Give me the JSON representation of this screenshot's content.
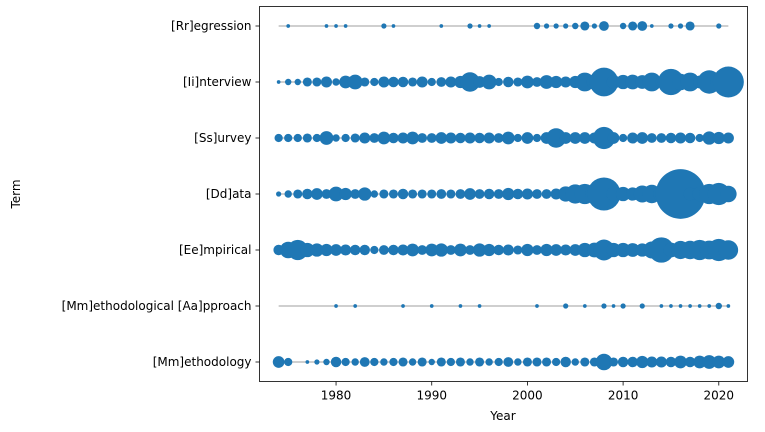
{
  "chart_data": {
    "type": "scatter",
    "xlabel": "Year",
    "ylabel": "Term",
    "xlim": [
      1972,
      2023
    ],
    "xticks": [
      1980,
      1990,
      2000,
      2010,
      2020
    ],
    "grid": false,
    "legend": "none",
    "marker_color": "#1f77b4",
    "line_color": "#7f7f7f",
    "terms": [
      "[Rr]egression",
      "[Ii]nterview",
      "[Ss]urvey",
      "[Dd]ata",
      "[Ee]mpirical",
      "[Mm]ethodological [Aa]pproach",
      "[Mm]ethodology"
    ],
    "series": [
      {
        "term": "[Rr]egression",
        "range": [
          1974,
          2021
        ],
        "points": [
          [
            1975,
            1
          ],
          [
            1979,
            1
          ],
          [
            1980,
            1
          ],
          [
            1981,
            1
          ],
          [
            1985,
            2
          ],
          [
            1986,
            1
          ],
          [
            1991,
            1
          ],
          [
            1994,
            2
          ],
          [
            1995,
            1
          ],
          [
            1996,
            1
          ],
          [
            2001,
            3
          ],
          [
            2002,
            2
          ],
          [
            2003,
            2
          ],
          [
            2004,
            2
          ],
          [
            2005,
            3
          ],
          [
            2006,
            6
          ],
          [
            2007,
            2
          ],
          [
            2008,
            7
          ],
          [
            2010,
            3
          ],
          [
            2011,
            6
          ],
          [
            2012,
            7
          ],
          [
            2013,
            1
          ],
          [
            2015,
            2
          ],
          [
            2016,
            2
          ],
          [
            2017,
            6
          ],
          [
            2020,
            2
          ]
        ]
      },
      {
        "term": "[Ii]nterview",
        "range": [
          1974,
          2021
        ],
        "points": [
          [
            1974,
            1
          ],
          [
            1975,
            3
          ],
          [
            1976,
            3
          ],
          [
            1977,
            6
          ],
          [
            1978,
            6
          ],
          [
            1979,
            9
          ],
          [
            1980,
            4
          ],
          [
            1981,
            12
          ],
          [
            1982,
            16
          ],
          [
            1983,
            6
          ],
          [
            1984,
            5
          ],
          [
            1985,
            9
          ],
          [
            1986,
            8
          ],
          [
            1987,
            8
          ],
          [
            1988,
            6
          ],
          [
            1989,
            9
          ],
          [
            1990,
            5
          ],
          [
            1991,
            7
          ],
          [
            1992,
            9
          ],
          [
            1993,
            11
          ],
          [
            1994,
            28
          ],
          [
            1995,
            10
          ],
          [
            1996,
            16
          ],
          [
            1997,
            5
          ],
          [
            1998,
            8
          ],
          [
            1999,
            6
          ],
          [
            2000,
            12
          ],
          [
            2001,
            7
          ],
          [
            2002,
            14
          ],
          [
            2003,
            11
          ],
          [
            2004,
            9
          ],
          [
            2005,
            11
          ],
          [
            2006,
            26
          ],
          [
            2007,
            17
          ],
          [
            2008,
            60
          ],
          [
            2009,
            14
          ],
          [
            2010,
            15
          ],
          [
            2011,
            16
          ],
          [
            2012,
            14
          ],
          [
            2013,
            26
          ],
          [
            2014,
            10
          ],
          [
            2015,
            50
          ],
          [
            2016,
            20
          ],
          [
            2017,
            26
          ],
          [
            2018,
            12
          ],
          [
            2019,
            40
          ],
          [
            2020,
            20
          ],
          [
            2021,
            70
          ]
        ]
      },
      {
        "term": "[Ss]urvey",
        "range": [
          1974,
          2021
        ],
        "points": [
          [
            1974,
            5
          ],
          [
            1975,
            5
          ],
          [
            1976,
            5
          ],
          [
            1977,
            6
          ],
          [
            1978,
            5
          ],
          [
            1979,
            14
          ],
          [
            1980,
            4
          ],
          [
            1981,
            5
          ],
          [
            1982,
            6
          ],
          [
            1983,
            9
          ],
          [
            1984,
            7
          ],
          [
            1985,
            12
          ],
          [
            1986,
            8
          ],
          [
            1987,
            9
          ],
          [
            1988,
            12
          ],
          [
            1989,
            7
          ],
          [
            1990,
            7
          ],
          [
            1991,
            10
          ],
          [
            1992,
            9
          ],
          [
            1993,
            8
          ],
          [
            1994,
            9
          ],
          [
            1995,
            8
          ],
          [
            1996,
            9
          ],
          [
            1997,
            7
          ],
          [
            1998,
            12
          ],
          [
            1999,
            5
          ],
          [
            2000,
            10
          ],
          [
            2001,
            5
          ],
          [
            2002,
            10
          ],
          [
            2003,
            28
          ],
          [
            2004,
            10
          ],
          [
            2005,
            10
          ],
          [
            2006,
            10
          ],
          [
            2007,
            9
          ],
          [
            2008,
            36
          ],
          [
            2009,
            10
          ],
          [
            2010,
            5
          ],
          [
            2011,
            9
          ],
          [
            2012,
            10
          ],
          [
            2013,
            7
          ],
          [
            2014,
            7
          ],
          [
            2015,
            8
          ],
          [
            2016,
            9
          ],
          [
            2017,
            8
          ],
          [
            2018,
            5
          ],
          [
            2019,
            13
          ],
          [
            2020,
            11
          ],
          [
            2021,
            9
          ]
        ]
      },
      {
        "term": "[Dd]ata",
        "range": [
          1974,
          2021
        ],
        "points": [
          [
            1974,
            2
          ],
          [
            1975,
            4
          ],
          [
            1976,
            6
          ],
          [
            1977,
            8
          ],
          [
            1978,
            10
          ],
          [
            1979,
            7
          ],
          [
            1980,
            16
          ],
          [
            1981,
            11
          ],
          [
            1982,
            7
          ],
          [
            1983,
            13
          ],
          [
            1984,
            4
          ],
          [
            1985,
            6
          ],
          [
            1986,
            6
          ],
          [
            1987,
            8
          ],
          [
            1988,
            6
          ],
          [
            1989,
            6
          ],
          [
            1990,
            6
          ],
          [
            1991,
            7
          ],
          [
            1992,
            6
          ],
          [
            1993,
            7
          ],
          [
            1994,
            10
          ],
          [
            1995,
            7
          ],
          [
            1996,
            8
          ],
          [
            1997,
            7
          ],
          [
            1998,
            11
          ],
          [
            1999,
            8
          ],
          [
            2000,
            9
          ],
          [
            2001,
            7
          ],
          [
            2002,
            7
          ],
          [
            2003,
            9
          ],
          [
            2004,
            17
          ],
          [
            2005,
            27
          ],
          [
            2006,
            30
          ],
          [
            2007,
            24
          ],
          [
            2008,
            80
          ],
          [
            2009,
            15
          ],
          [
            2010,
            15
          ],
          [
            2011,
            13
          ],
          [
            2012,
            21
          ],
          [
            2013,
            25
          ],
          [
            2014,
            18
          ],
          [
            2015,
            22
          ],
          [
            2016,
            180
          ],
          [
            2017,
            12
          ],
          [
            2018,
            15
          ],
          [
            2019,
            30
          ],
          [
            2020,
            36
          ],
          [
            2021,
            20
          ]
        ]
      },
      {
        "term": "[Ee]mpirical",
        "range": [
          1974,
          2021
        ],
        "points": [
          [
            1974,
            8
          ],
          [
            1975,
            20
          ],
          [
            1976,
            30
          ],
          [
            1977,
            15
          ],
          [
            1978,
            13
          ],
          [
            1979,
            11
          ],
          [
            1980,
            10
          ],
          [
            1981,
            9
          ],
          [
            1982,
            8
          ],
          [
            1983,
            8
          ],
          [
            1984,
            5
          ],
          [
            1985,
            7
          ],
          [
            1986,
            8
          ],
          [
            1987,
            9
          ],
          [
            1988,
            12
          ],
          [
            1989,
            7
          ],
          [
            1990,
            12
          ],
          [
            1991,
            13
          ],
          [
            1992,
            7
          ],
          [
            1993,
            12
          ],
          [
            1994,
            7
          ],
          [
            1995,
            13
          ],
          [
            1996,
            11
          ],
          [
            1997,
            8
          ],
          [
            1998,
            9
          ],
          [
            1999,
            6
          ],
          [
            2000,
            11
          ],
          [
            2001,
            7
          ],
          [
            2002,
            11
          ],
          [
            2003,
            10
          ],
          [
            2004,
            9
          ],
          [
            2005,
            10
          ],
          [
            2006,
            15
          ],
          [
            2007,
            16
          ],
          [
            2008,
            32
          ],
          [
            2009,
            15
          ],
          [
            2010,
            15
          ],
          [
            2011,
            14
          ],
          [
            2012,
            13
          ],
          [
            2013,
            21
          ],
          [
            2014,
            47
          ],
          [
            2015,
            16
          ],
          [
            2016,
            24
          ],
          [
            2017,
            25
          ],
          [
            2018,
            30
          ],
          [
            2019,
            26
          ],
          [
            2020,
            36
          ],
          [
            2021,
            28
          ]
        ]
      },
      {
        "term": "[Mm]ethodological [Aa]pproach",
        "range": [
          1974,
          2021
        ],
        "points": [
          [
            1980,
            1
          ],
          [
            1982,
            1
          ],
          [
            1987,
            1
          ],
          [
            1990,
            1
          ],
          [
            1993,
            1
          ],
          [
            1995,
            1
          ],
          [
            2001,
            1
          ],
          [
            2004,
            2
          ],
          [
            2006,
            1
          ],
          [
            2008,
            2
          ],
          [
            2009,
            1
          ],
          [
            2010,
            2
          ],
          [
            2012,
            2
          ],
          [
            2014,
            1
          ],
          [
            2015,
            1
          ],
          [
            2016,
            1
          ],
          [
            2017,
            1
          ],
          [
            2018,
            1
          ],
          [
            2019,
            1
          ],
          [
            2020,
            3
          ],
          [
            2021,
            1
          ]
        ]
      },
      {
        "term": "[Mm]ethodology",
        "range": [
          1974,
          2021
        ],
        "points": [
          [
            1974,
            10
          ],
          [
            1975,
            5
          ],
          [
            1977,
            1
          ],
          [
            1978,
            2
          ],
          [
            1979,
            3
          ],
          [
            1980,
            8
          ],
          [
            1981,
            5
          ],
          [
            1982,
            4
          ],
          [
            1983,
            7
          ],
          [
            1984,
            5
          ],
          [
            1985,
            4
          ],
          [
            1986,
            5
          ],
          [
            1987,
            6
          ],
          [
            1988,
            4
          ],
          [
            1989,
            6
          ],
          [
            1990,
            3
          ],
          [
            1991,
            6
          ],
          [
            1992,
            5
          ],
          [
            1993,
            6
          ],
          [
            1994,
            4
          ],
          [
            1995,
            6
          ],
          [
            1996,
            4
          ],
          [
            1997,
            5
          ],
          [
            1998,
            7
          ],
          [
            1999,
            4
          ],
          [
            2000,
            6
          ],
          [
            2001,
            6
          ],
          [
            2002,
            6
          ],
          [
            2003,
            5
          ],
          [
            2004,
            8
          ],
          [
            2005,
            4
          ],
          [
            2006,
            6
          ],
          [
            2007,
            6
          ],
          [
            2008,
            20
          ],
          [
            2009,
            6
          ],
          [
            2010,
            8
          ],
          [
            2011,
            8
          ],
          [
            2012,
            11
          ],
          [
            2013,
            9
          ],
          [
            2014,
            9
          ],
          [
            2015,
            8
          ],
          [
            2016,
            12
          ],
          [
            2017,
            8
          ],
          [
            2018,
            12
          ],
          [
            2019,
            14
          ],
          [
            2020,
            12
          ],
          [
            2021,
            10
          ]
        ]
      }
    ]
  }
}
